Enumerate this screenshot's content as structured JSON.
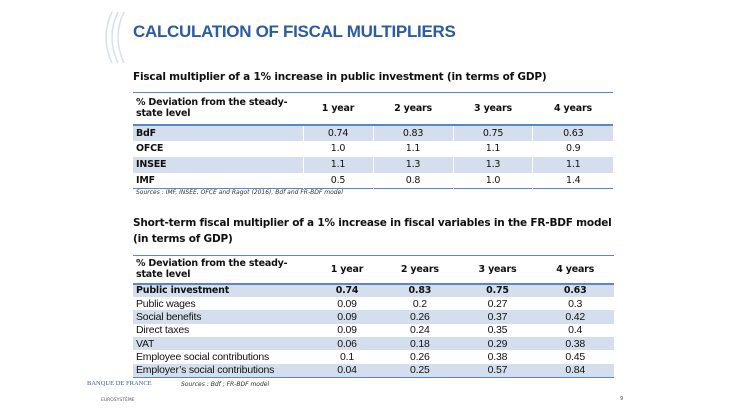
{
  "title": "CALCULATION OF FISCAL MULTIPLIERS",
  "table1": {
    "caption": "Fiscal multiplier of a 1% increase in public investment (in terms of GDP)",
    "headers": [
      "% Deviation from the steady-state level",
      "1 year",
      "2 years",
      "3 years",
      "4 years"
    ],
    "rows": [
      [
        "BdF",
        "0.74",
        "0.83",
        "0.75",
        "0.63"
      ],
      [
        "OFCE",
        "1.0",
        "1.1",
        "1.1",
        "0.9"
      ],
      [
        "INSEE",
        "1.1",
        "1.3",
        "1.3",
        "1.1"
      ],
      [
        "IMF",
        "0.5",
        "0.8",
        "1.0",
        "1.4"
      ]
    ],
    "source": "Sources : IMF, INSEE, OFCE and Ragot (2016), Bdf and FR-BDF model"
  },
  "table2": {
    "caption": "Short-term fiscal multiplier of a 1% increase in fiscal variables in the FR-BDF model (in terms of GDP)",
    "headers": [
      "% Deviation from the steady-state level",
      "1 year",
      "2 years",
      "3 years",
      "4 years"
    ],
    "rows": [
      [
        "Public investment",
        "0.74",
        "0.83",
        "0.75",
        "0.63"
      ],
      [
        "Public wages",
        "0.09",
        "0.2",
        "0.27",
        "0.3"
      ],
      [
        "Social benefits",
        "0.09",
        "0.26",
        "0.37",
        "0.42"
      ],
      [
        "Direct taxes",
        "0.09",
        "0.24",
        "0.35",
        "0.4"
      ],
      [
        "VAT",
        "0.06",
        "0.18",
        "0.29",
        "0.38"
      ],
      [
        "Employee social contributions",
        "0.1",
        "0.26",
        "0.38",
        "0.45"
      ],
      [
        "Employer’s social contributions",
        "0.04",
        "0.25",
        "0.57",
        "0.84"
      ]
    ],
    "source": "Sources : Bdf ; FR-BDF model"
  },
  "footer": {
    "logo": "BANQUE DE FRANCE",
    "logo_sub": "EUROSYSTÈME",
    "page": "9"
  },
  "colors": {
    "title": "#2a5aa8",
    "shade": "#d5deec",
    "rule": "#5b87c7"
  }
}
